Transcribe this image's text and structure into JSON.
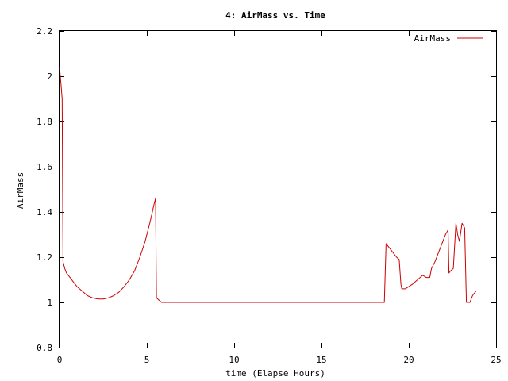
{
  "chart_data": {
    "type": "line",
    "title": "4: AirMass vs. Time",
    "xlabel": "time (Elapse Hours)",
    "ylabel": "AirMass",
    "xlim": [
      0,
      25
    ],
    "ylim": [
      0.8,
      2.2
    ],
    "xticks": [
      0,
      5,
      10,
      15,
      20,
      25
    ],
    "xtick_labels": [
      "0",
      "5",
      "10",
      "15",
      "20",
      "25"
    ],
    "yticks": [
      0.8,
      1.0,
      1.2,
      1.4,
      1.6,
      1.8,
      2.0,
      2.2
    ],
    "ytick_labels": [
      "0.8",
      "1",
      "1.2",
      "1.4",
      "1.6",
      "1.8",
      "2",
      "2.2"
    ],
    "grid": false,
    "legend_position": "top-right",
    "series": [
      {
        "name": "AirMass",
        "color": "#cc0000",
        "x": [
          0.0,
          0.1,
          0.15,
          0.2,
          0.3,
          0.4,
          0.6,
          0.8,
          1.0,
          1.3,
          1.6,
          1.9,
          2.2,
          2.5,
          2.8,
          3.1,
          3.4,
          3.7,
          4.0,
          4.3,
          4.6,
          4.9,
          5.2,
          5.4,
          5.5,
          5.55,
          5.7,
          5.85,
          6.0,
          8.0,
          10.0,
          12.0,
          14.0,
          16.0,
          18.0,
          18.6,
          18.7,
          18.9,
          19.1,
          19.3,
          19.45,
          19.55,
          19.6,
          19.8,
          20.0,
          20.2,
          20.5,
          20.8,
          21.0,
          21.2,
          21.3,
          21.5,
          21.7,
          21.9,
          22.1,
          22.25,
          22.3,
          22.4,
          22.55,
          22.7,
          22.8,
          22.9,
          23.05,
          23.2,
          23.3,
          23.4,
          23.5,
          23.65,
          23.75,
          23.85
        ],
        "y": [
          2.04,
          1.95,
          1.9,
          1.18,
          1.15,
          1.13,
          1.11,
          1.09,
          1.07,
          1.05,
          1.03,
          1.02,
          1.015,
          1.015,
          1.02,
          1.03,
          1.045,
          1.07,
          1.1,
          1.14,
          1.2,
          1.27,
          1.36,
          1.43,
          1.46,
          1.02,
          1.01,
          1.0,
          1.0,
          1.0,
          1.0,
          1.0,
          1.0,
          1.0,
          1.0,
          1.0,
          1.26,
          1.24,
          1.22,
          1.2,
          1.19,
          1.08,
          1.06,
          1.06,
          1.07,
          1.08,
          1.1,
          1.12,
          1.11,
          1.11,
          1.15,
          1.18,
          1.22,
          1.26,
          1.3,
          1.32,
          1.13,
          1.14,
          1.15,
          1.35,
          1.3,
          1.27,
          1.35,
          1.33,
          1.0,
          1.0,
          1.0,
          1.03,
          1.04,
          1.05
        ]
      }
    ]
  }
}
